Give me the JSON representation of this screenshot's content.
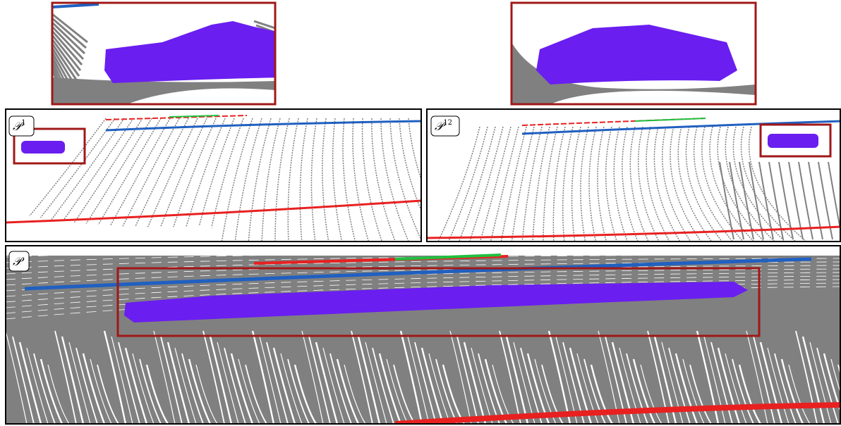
{
  "panels": [
    {
      "label": "𝒫",
      "superscript": "1"
    },
    {
      "label": "𝒫",
      "superscript": "12"
    },
    {
      "label": "𝒫"
    }
  ]
}
